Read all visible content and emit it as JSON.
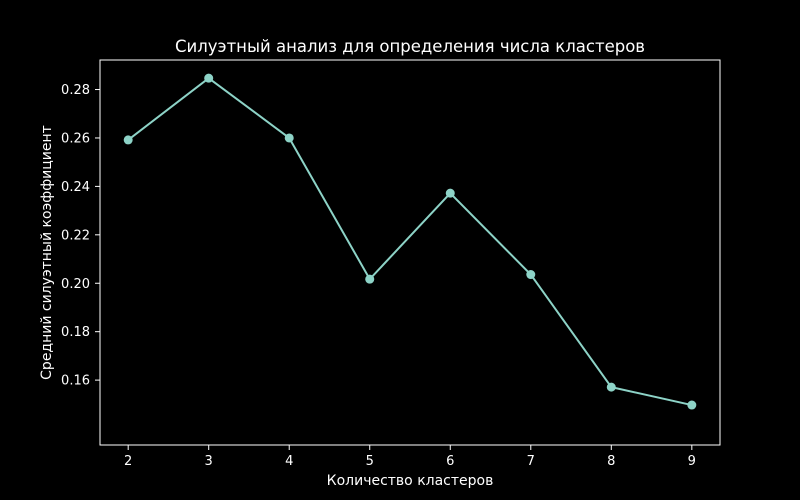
{
  "chart_data": {
    "type": "line",
    "title": "Силуэтный анализ для определения числа кластеров",
    "xlabel": "Количество кластеров",
    "ylabel": "Средний силуэтный коэффициент",
    "x": [
      2,
      3,
      4,
      5,
      6,
      7,
      8,
      9
    ],
    "series": [
      {
        "values": [
          0.2592,
          0.2847,
          0.26,
          0.2017,
          0.2372,
          0.2036,
          0.1571,
          0.1497
        ]
      }
    ],
    "xlim": [
      1.65,
      9.35
    ],
    "ylim": [
      0.1332,
      0.2922
    ],
    "x_ticks": [
      "2",
      "3",
      "4",
      "5",
      "6",
      "7",
      "8",
      "9"
    ],
    "y_ticks": [
      "0.16",
      "0.18",
      "0.20",
      "0.22",
      "0.24",
      "0.26",
      "0.28"
    ],
    "grid": false,
    "line_color": "#8dd3c7",
    "background": "#000000",
    "foreground": "#ffffff"
  }
}
